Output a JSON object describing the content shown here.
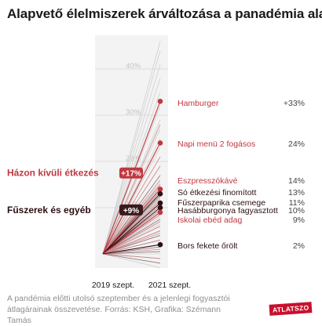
{
  "title": "Alapvető élelmiszerek árváltozása a panadémia alatt",
  "footnote": {
    "line1": "A pandémia előtti utolsó szeptember és a jelenlegi fogyasztói",
    "line2": "átlagárainak összevetése. Forrás: KSH, Grafika: Szémann Tamás"
  },
  "logo": "ATLATSZO",
  "colors": {
    "accent_red": "#c0383f",
    "dark": "#2b0f12",
    "gray_line": "#cfcfcf",
    "badge_red": "#c0383f",
    "badge_dark": "#3a1a1c"
  },
  "chart_data": {
    "type": "slope",
    "title": "Alapvető élelmiszerek árváltozása a panadémia alatt",
    "x": [
      "2019 szept.",
      "2021 szept."
    ],
    "ylim": [
      0,
      45
    ],
    "y_ticks": [
      10,
      20,
      30,
      40
    ],
    "y_tick_labels": [
      "10%",
      "20%",
      "30%",
      "40%"
    ],
    "highlighted": [
      {
        "name": "Hamburger",
        "change": 33,
        "label": "+33%",
        "group": "out"
      },
      {
        "name": "Napi menü 2 fogásos",
        "change": 24,
        "label": "24%",
        "group": "out"
      },
      {
        "name": "Eszpresszókávé",
        "change": 14,
        "label": "14%",
        "group": "out"
      },
      {
        "name": "Só étkezési finomított",
        "change": 13,
        "label": "13%",
        "group": "spice"
      },
      {
        "name": "Fűszerpaprika csemege",
        "change": 11,
        "label": "11%",
        "group": "spice"
      },
      {
        "name": "Hasábburgonya fagyasztott",
        "change": 10,
        "label": "10%",
        "group": "spice"
      },
      {
        "name": "Iskolai ebéd adag",
        "change": 9,
        "label": "9%",
        "group": "out"
      },
      {
        "name": "Bors fekete őrölt",
        "change": 2,
        "label": "2%",
        "group": "spice"
      }
    ],
    "groups": [
      {
        "id": "out",
        "name": "Házon kívüli étkezés",
        "average": 17,
        "badge": "+17%"
      },
      {
        "id": "spice",
        "name": "Fűszerek és egyéb",
        "average": 9,
        "badge": "+9%"
      }
    ],
    "background_red": [
      28,
      21,
      19,
      16,
      14.5,
      12,
      11.5,
      10.5,
      9.5,
      8.5,
      7,
      6,
      5,
      4.5,
      3,
      1,
      -1
    ],
    "background_dark": [
      17,
      15,
      13.5,
      12.5,
      11.5,
      10.5,
      9.5,
      8.5,
      7.5,
      7,
      6,
      5,
      4,
      3,
      1.5,
      0.5,
      -1,
      -2
    ],
    "background_gray": [
      46,
      44,
      41,
      38,
      35,
      32,
      29,
      27,
      25,
      23,
      21,
      19,
      17,
      15.5,
      14,
      12.5,
      11,
      9.5,
      8,
      6.5,
      5,
      4,
      3,
      2,
      1,
      0,
      -1,
      -3
    ]
  }
}
